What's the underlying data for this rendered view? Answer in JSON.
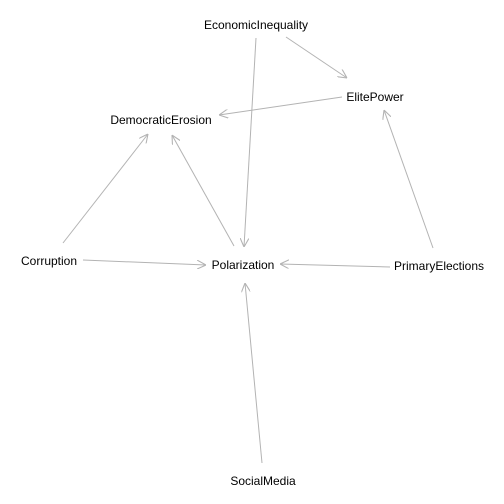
{
  "graph": {
    "nodes": [
      {
        "id": "EconomicInequality",
        "label": "EconomicInequality"
      },
      {
        "id": "ElitePower",
        "label": "ElitePower"
      },
      {
        "id": "DemocraticErosion",
        "label": "DemocraticErosion"
      },
      {
        "id": "Corruption",
        "label": "Corruption"
      },
      {
        "id": "Polarization",
        "label": "Polarization"
      },
      {
        "id": "PrimaryElections",
        "label": "PrimaryElections"
      },
      {
        "id": "SocialMedia",
        "label": "SocialMedia"
      }
    ],
    "edges": [
      {
        "from": "EconomicInequality",
        "to": "ElitePower"
      },
      {
        "from": "EconomicInequality",
        "to": "Polarization"
      },
      {
        "from": "ElitePower",
        "to": "DemocraticErosion"
      },
      {
        "from": "Corruption",
        "to": "DemocraticErosion"
      },
      {
        "from": "Corruption",
        "to": "Polarization"
      },
      {
        "from": "Polarization",
        "to": "DemocraticErosion"
      },
      {
        "from": "PrimaryElections",
        "to": "Polarization"
      },
      {
        "from": "PrimaryElections",
        "to": "ElitePower"
      },
      {
        "from": "SocialMedia",
        "to": "Polarization"
      }
    ]
  }
}
